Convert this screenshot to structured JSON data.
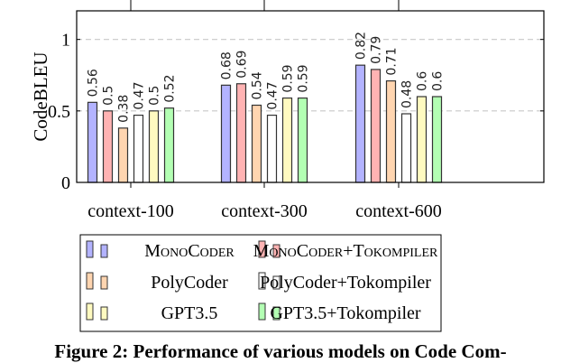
{
  "chart_data": {
    "type": "bar",
    "title": "",
    "xlabel": "",
    "ylabel": "CodeBLEU",
    "ylim": [
      0,
      1.2
    ],
    "yticks": [
      0,
      0.5,
      1
    ],
    "ytick_labels": [
      "0",
      "0.5",
      "1"
    ],
    "grid": "horizontal dashed at 0.5 and 1",
    "legend_placement": "below",
    "categories": [
      "context-100",
      "context-300",
      "context-600"
    ],
    "series": [
      {
        "name": "MonoCoder",
        "color": "#b3b3ff",
        "values": [
          0.56,
          0.68,
          0.82
        ],
        "labels": [
          "0.56",
          "0.68",
          "0.82"
        ]
      },
      {
        "name": "MonoCoder+Tokompiler",
        "color": "#ffb3b3",
        "values": [
          0.5,
          0.69,
          0.79
        ],
        "labels": [
          "0.5",
          "0.69",
          "0.79"
        ]
      },
      {
        "name": "PolyCoder",
        "color": "#ffd5b0",
        "values": [
          0.38,
          0.54,
          0.71
        ],
        "labels": [
          "0.38",
          "0.54",
          "0.71"
        ]
      },
      {
        "name": "PolyCoder+Tokompiler",
        "color": "#ffffff",
        "values": [
          0.47,
          0.47,
          0.48
        ],
        "labels": [
          "0.47",
          "0.47",
          "0.48"
        ]
      },
      {
        "name": "GPT3.5",
        "color": "#fffac0",
        "values": [
          0.5,
          0.59,
          0.6
        ],
        "labels": [
          "0.5",
          "0.59",
          "0.6"
        ]
      },
      {
        "name": "GPT3.5+Tokompiler",
        "color": "#b3ffb3",
        "values": [
          0.52,
          0.59,
          0.6
        ],
        "labels": [
          "0.52",
          "0.59",
          "0.6"
        ]
      }
    ]
  },
  "caption": "Figure 2: Performance of various models on Code Com-"
}
